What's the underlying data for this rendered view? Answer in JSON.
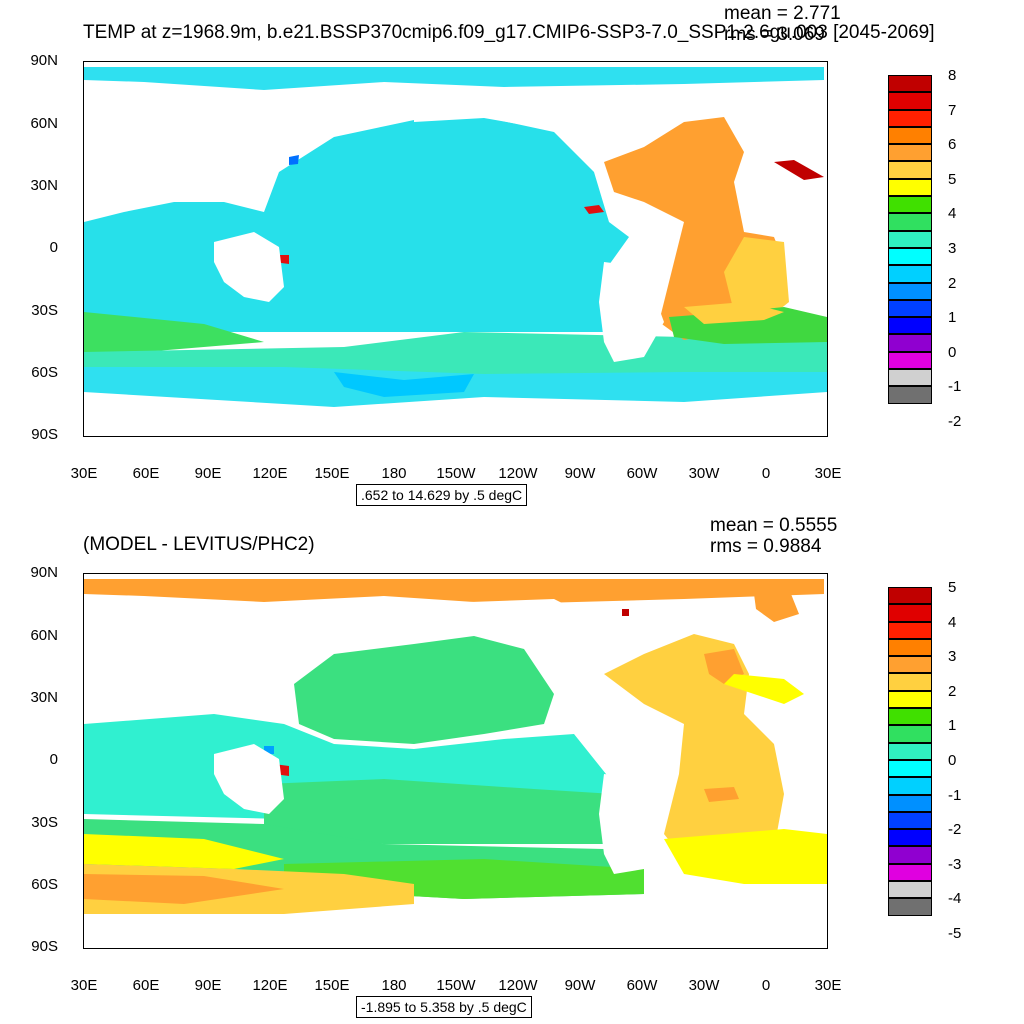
{
  "top": {
    "title": "TEMP at z=1968.9m, b.e21.BSSP370cmip6.f09_g17.CMIP6-SSP3-7.0_SSP1-2.6gu.003 [2045-2069]",
    "mean_label": "mean = 2.771",
    "rms_label": "rms = 3.069",
    "contour_info": ".652 to 14.629 by .5 degC",
    "colorbar": {
      "labels": [
        "8",
        "7",
        "6",
        "5",
        "4",
        "3",
        "2",
        "1",
        "0",
        "-1",
        "-2"
      ],
      "colors": [
        "#c00000",
        "#e00000",
        "#ff2000",
        "#ff8000",
        "#ffa030",
        "#ffd040",
        "#ffff00",
        "#40e000",
        "#30e060",
        "#30f0c0",
        "#00ffff",
        "#00d0ff",
        "#0090ff",
        "#0040ff",
        "#0000ff",
        "#9000d0",
        "#e000e0",
        "#d0d0d0",
        "#707070"
      ]
    }
  },
  "bottom": {
    "title": "(MODEL - LEVITUS/PHC2)",
    "mean_label": "mean = 0.5555",
    "rms_label": "rms = 0.9884",
    "contour_info": "-1.895 to 5.358 by .5 degC",
    "colorbar": {
      "labels": [
        "5",
        "4",
        "3",
        "2",
        "1",
        "0",
        "-1",
        "-2",
        "-3",
        "-4",
        "-5"
      ],
      "colors": [
        "#c00000",
        "#e00000",
        "#ff2000",
        "#ff8000",
        "#ffa030",
        "#ffd040",
        "#ffff00",
        "#40e000",
        "#30e060",
        "#30f0c0",
        "#00ffff",
        "#00d0ff",
        "#0090ff",
        "#0040ff",
        "#0000ff",
        "#9000d0",
        "#e000e0",
        "#d0d0d0",
        "#707070"
      ]
    }
  },
  "axes": {
    "lat_labels": [
      "90N",
      "60N",
      "30N",
      "0",
      "30S",
      "60S",
      "90S"
    ],
    "lon_labels": [
      "30E",
      "60E",
      "90E",
      "120E",
      "150E",
      "180",
      "150W",
      "120W",
      "90W",
      "60W",
      "30W",
      "0",
      "30E"
    ]
  }
}
